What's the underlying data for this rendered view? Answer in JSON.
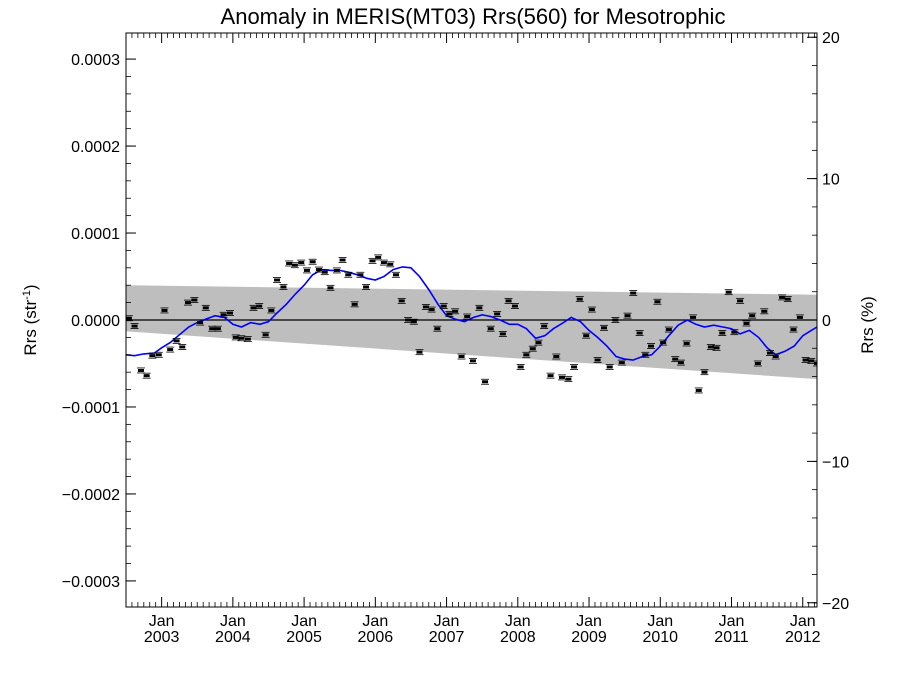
{
  "chart_data": {
    "type": "scatter",
    "title": "Anomaly in MERIS(MT03) Rrs(560) for Mesotrophic",
    "ylabel_left": {
      "base": "Rrs (str",
      "sup": "-1",
      "close": ")"
    },
    "ylabel_right": "Rrs (%)",
    "x_unit": "decimal year",
    "xlim": [
      2002.5,
      2012.2
    ],
    "ylim_left": [
      -0.00033,
      0.00033
    ],
    "ylim_right": [
      -20.3,
      20.3
    ],
    "grid": false,
    "legend": "none",
    "yticks_left": [
      {
        "value": 0.0003,
        "label": "0.0003"
      },
      {
        "value": 0.0002,
        "label": "0.0002"
      },
      {
        "value": 0.0001,
        "label": "0.0001"
      },
      {
        "value": 0.0,
        "label": "0.0000"
      },
      {
        "value": -0.0001,
        "label": "−0.0001"
      },
      {
        "value": -0.0002,
        "label": "−0.0002"
      },
      {
        "value": -0.0003,
        "label": "−0.0003"
      }
    ],
    "yticks_right": [
      {
        "value": 20,
        "label": "20"
      },
      {
        "value": 10,
        "label": "10"
      },
      {
        "value": 0,
        "label": "0"
      },
      {
        "value": -10,
        "label": "−10"
      },
      {
        "value": -20,
        "label": "−20"
      }
    ],
    "xticks": [
      {
        "value": 2003.0,
        "month": "Jan",
        "year": "2003"
      },
      {
        "value": 2004.0,
        "month": "Jan",
        "year": "2004"
      },
      {
        "value": 2005.0,
        "month": "Jan",
        "year": "2005"
      },
      {
        "value": 2006.0,
        "month": "Jan",
        "year": "2006"
      },
      {
        "value": 2007.0,
        "month": "Jan",
        "year": "2007"
      },
      {
        "value": 2008.0,
        "month": "Jan",
        "year": "2008"
      },
      {
        "value": 2009.0,
        "month": "Jan",
        "year": "2009"
      },
      {
        "value": 2010.0,
        "month": "Jan",
        "year": "2010"
      },
      {
        "value": 2011.0,
        "month": "Jan",
        "year": "2011"
      },
      {
        "value": 2012.0,
        "month": "Jan",
        "year": "2012"
      }
    ],
    "uncertainty_band": {
      "x": [
        2002.5,
        2012.2
      ],
      "upper": [
        4e-05,
        2.9e-05
      ],
      "lower": [
        -1.3e-05,
        -6.8e-05
      ],
      "color": "#bebebe"
    },
    "zero_line": {
      "value": 0.0,
      "color": "#000000"
    },
    "colors": {
      "points": "#000000",
      "smooth": "#0000ff"
    },
    "series": [
      {
        "kind": "points",
        "x": [
          2002.54,
          2002.62,
          2002.71,
          2002.79,
          2002.87,
          2002.96,
          2003.04,
          2003.12,
          2003.21,
          2003.29,
          2003.37,
          2003.46,
          2003.54,
          2003.62,
          2003.71,
          2003.79,
          2003.87,
          2003.96,
          2004.04,
          2004.12,
          2004.21,
          2004.29,
          2004.37,
          2004.46,
          2004.54,
          2004.62,
          2004.71,
          2004.79,
          2004.87,
          2004.96,
          2005.04,
          2005.12,
          2005.21,
          2005.29,
          2005.37,
          2005.46,
          2005.54,
          2005.62,
          2005.71,
          2005.79,
          2005.87,
          2005.96,
          2006.04,
          2006.12,
          2006.21,
          2006.29,
          2006.37,
          2006.46,
          2006.54,
          2006.62,
          2006.71,
          2006.79,
          2006.87,
          2006.96,
          2007.04,
          2007.12,
          2007.21,
          2007.29,
          2007.37,
          2007.46,
          2007.54,
          2007.62,
          2007.71,
          2007.79,
          2007.87,
          2007.96,
          2008.04,
          2008.12,
          2008.21,
          2008.29,
          2008.37,
          2008.46,
          2008.54,
          2008.62,
          2008.71,
          2008.79,
          2008.87,
          2008.96,
          2009.04,
          2009.12,
          2009.21,
          2009.29,
          2009.37,
          2009.46,
          2009.54,
          2009.62,
          2009.71,
          2009.79,
          2009.87,
          2009.96,
          2010.04,
          2010.12,
          2010.21,
          2010.29,
          2010.37,
          2010.46,
          2010.54,
          2010.62,
          2010.71,
          2010.79,
          2010.87,
          2010.96,
          2011.04,
          2011.12,
          2011.21,
          2011.29,
          2011.37,
          2011.46,
          2011.54,
          2011.62,
          2011.71,
          2011.79,
          2011.87,
          2011.96,
          2012.04,
          2012.12,
          2012.2
        ],
        "y": [
          2e-06,
          -7e-06,
          -5.8e-05,
          -6.4e-05,
          -4.1e-05,
          -4e-05,
          1.1e-05,
          -3.4e-05,
          -2.4e-05,
          -3.1e-05,
          2e-05,
          2.3e-05,
          -3e-06,
          1.4e-05,
          -1e-05,
          -1e-05,
          6e-06,
          8e-06,
          -2e-05,
          -2.1e-05,
          -2.2e-05,
          1.4e-05,
          1.6e-05,
          -1.7e-05,
          1.1e-05,
          4.6e-05,
          3.8e-05,
          6.5e-05,
          6.3e-05,
          6.6e-05,
          5.7e-05,
          6.7e-05,
          5.8e-05,
          5.5e-05,
          3.7e-05,
          5.7e-05,
          6.9e-05,
          5.2e-05,
          1.8e-05,
          5.2e-05,
          3.8e-05,
          6.8e-05,
          7.2e-05,
          6.6e-05,
          6.4e-05,
          5.2e-05,
          2.2e-05,
          0.0,
          -2e-06,
          -3.7e-05,
          1.5e-05,
          1.2e-05,
          -1e-05,
          1.6e-05,
          7e-06,
          1e-05,
          -4.2e-05,
          4e-06,
          -4.7e-05,
          1.4e-05,
          -7.1e-05,
          -1e-05,
          7e-06,
          -1.6e-05,
          2.2e-05,
          1.6e-05,
          -5.4e-05,
          -4e-05,
          -3.3e-05,
          -2.6e-05,
          -7e-06,
          -6.4e-05,
          -4.2e-05,
          -6.6e-05,
          -6.8e-05,
          -5.4e-05,
          2.4e-05,
          -1.8e-05,
          1.2e-05,
          -4.6e-05,
          -9e-06,
          -5.4e-05,
          0.0,
          -4.9e-05,
          5e-06,
          3.1e-05,
          -1.5e-05,
          -4e-05,
          -3e-05,
          2.1e-05,
          -2.6e-05,
          -1.1e-05,
          -4.5e-05,
          -4.9e-05,
          -2.7e-05,
          3e-06,
          -8.1e-05,
          -6e-05,
          -3.1e-05,
          -3.2e-05,
          -1.5e-05,
          3.2e-05,
          -1.4e-05,
          2.2e-05,
          -4e-06,
          5e-06,
          -5e-05,
          1e-05,
          -3.8e-05,
          -4.2e-05,
          2.6e-05,
          2.4e-05,
          -1.1e-05,
          3e-06,
          -4.6e-05,
          -4.7e-05,
          -5e-05
        ]
      },
      {
        "kind": "smooth",
        "x": [
          2002.5,
          2002.62,
          2002.75,
          2002.9,
          2003.0,
          2003.12,
          2003.25,
          2003.38,
          2003.5,
          2003.62,
          2003.75,
          2003.88,
          2004.0,
          2004.12,
          2004.25,
          2004.38,
          2004.5,
          2004.62,
          2004.75,
          2004.88,
          2005.0,
          2005.12,
          2005.25,
          2005.38,
          2005.5,
          2005.62,
          2005.75,
          2005.88,
          2006.0,
          2006.12,
          2006.25,
          2006.38,
          2006.5,
          2006.62,
          2006.75,
          2006.88,
          2007.0,
          2007.12,
          2007.25,
          2007.38,
          2007.5,
          2007.62,
          2007.75,
          2007.88,
          2008.0,
          2008.12,
          2008.25,
          2008.38,
          2008.5,
          2008.62,
          2008.75,
          2008.88,
          2009.0,
          2009.12,
          2009.25,
          2009.38,
          2009.5,
          2009.62,
          2009.75,
          2009.88,
          2010.0,
          2010.12,
          2010.25,
          2010.38,
          2010.5,
          2010.62,
          2010.75,
          2010.88,
          2011.0,
          2011.12,
          2011.25,
          2011.38,
          2011.5,
          2011.62,
          2011.75,
          2011.88,
          2012.0,
          2012.12,
          2012.2
        ],
        "y": [
          -4e-05,
          -4.1e-05,
          -3.9e-05,
          -3.8e-05,
          -3.2e-05,
          -2.6e-05,
          -1.7e-05,
          -8e-06,
          -3e-06,
          1e-06,
          5e-06,
          3e-06,
          -5e-06,
          -8e-06,
          -3e-06,
          -5e-06,
          -2e-06,
          8e-06,
          1.8e-05,
          3e-05,
          4e-05,
          5.2e-05,
          5.8e-05,
          5.7e-05,
          5.7e-05,
          5.5e-05,
          5.2e-05,
          4.8e-05,
          4.6e-05,
          5e-05,
          5.8e-05,
          6.1e-05,
          6e-05,
          5e-05,
          3.5e-05,
          1.8e-05,
          5e-06,
          1e-06,
          -2e-06,
          3e-06,
          6e-06,
          4e-06,
          0.0,
          -5e-06,
          -5e-06,
          -1e-05,
          -2.1e-05,
          -1.8e-05,
          -1e-05,
          -4e-06,
          3e-06,
          -2e-06,
          -1.2e-05,
          -2e-05,
          -3e-05,
          -4.2e-05,
          -4.5e-05,
          -4.6e-05,
          -4.2e-05,
          -4e-05,
          -3e-05,
          -1.8e-05,
          -6e-06,
          0.0,
          -5e-06,
          -8e-06,
          -6e-06,
          -8e-06,
          -1e-05,
          -1.6e-05,
          -1.2e-05,
          -2e-05,
          -3.2e-05,
          -4e-05,
          -3.6e-05,
          -3e-05,
          -1.8e-05,
          -1.2e-05,
          -8e-06
        ]
      }
    ]
  }
}
